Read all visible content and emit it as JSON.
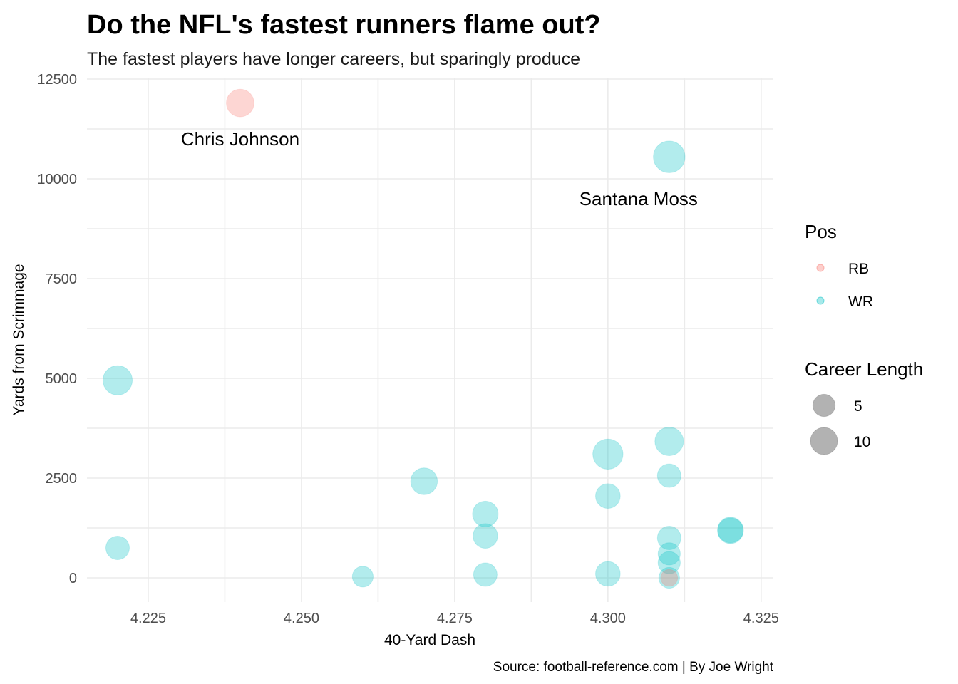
{
  "chart_data": {
    "type": "scatter",
    "title": "Do the NFL's fastest runners flame out?",
    "subtitle": "The fastest players have longer careers, but sparingly produce",
    "caption": "Source: football-reference.com | By Joe Wright",
    "xlabel": "40-Yard Dash",
    "ylabel": "Yards from Scrimmage",
    "xlim": [
      4.215,
      4.327
    ],
    "ylim": [
      -600,
      12500
    ],
    "x_ticks": [
      4.225,
      4.25,
      4.275,
      4.3,
      4.325
    ],
    "x_tick_labels": [
      "4.225",
      "4.250",
      "4.275",
      "4.300",
      "4.325"
    ],
    "y_ticks": [
      0,
      2500,
      5000,
      7500,
      10000,
      12500
    ],
    "y_tick_labels": [
      "0",
      "2500",
      "5000",
      "7500",
      "10000",
      "12500"
    ],
    "grid": true,
    "colors": {
      "RB": "#F8766D",
      "WR": "#00BFC4"
    },
    "point_alpha": 0.3,
    "legend": {
      "position": "right",
      "color_title": "Pos",
      "color_items": [
        "RB",
        "WR"
      ],
      "size_title": "Career Length",
      "size_items": [
        5,
        10
      ]
    },
    "annotations": [
      {
        "text": "Chris Johnson",
        "x": 4.24,
        "y": 11000
      },
      {
        "text": "Santana Moss",
        "x": 4.305,
        "y": 9500
      }
    ],
    "points": [
      {
        "x": 4.24,
        "y": 11900,
        "pos": "RB",
        "career": 9
      },
      {
        "x": 4.31,
        "y": 10550,
        "pos": "WR",
        "career": 14
      },
      {
        "x": 4.22,
        "y": 4950,
        "pos": "WR",
        "career": 11
      },
      {
        "x": 4.22,
        "y": 750,
        "pos": "WR",
        "career": 5
      },
      {
        "x": 4.26,
        "y": 30,
        "pos": "WR",
        "career": 3
      },
      {
        "x": 4.27,
        "y": 2420,
        "pos": "WR",
        "career": 8
      },
      {
        "x": 4.28,
        "y": 1600,
        "pos": "WR",
        "career": 7
      },
      {
        "x": 4.28,
        "y": 1050,
        "pos": "WR",
        "career": 6
      },
      {
        "x": 4.28,
        "y": 80,
        "pos": "WR",
        "career": 5
      },
      {
        "x": 4.3,
        "y": 3100,
        "pos": "WR",
        "career": 12
      },
      {
        "x": 4.3,
        "y": 2050,
        "pos": "WR",
        "career": 6
      },
      {
        "x": 4.3,
        "y": 100,
        "pos": "WR",
        "career": 6
      },
      {
        "x": 4.31,
        "y": 3420,
        "pos": "WR",
        "career": 10
      },
      {
        "x": 4.31,
        "y": 2560,
        "pos": "WR",
        "career": 5
      },
      {
        "x": 4.31,
        "y": 1000,
        "pos": "WR",
        "career": 5
      },
      {
        "x": 4.31,
        "y": 600,
        "pos": "WR",
        "career": 4
      },
      {
        "x": 4.31,
        "y": 380,
        "pos": "WR",
        "career": 4
      },
      {
        "x": 4.31,
        "y": 0,
        "pos": "WR",
        "career": 3
      },
      {
        "x": 4.31,
        "y": 0,
        "pos": "RB",
        "career": 1
      },
      {
        "x": 4.32,
        "y": 1200,
        "pos": "WR",
        "career": 7
      },
      {
        "x": 4.32,
        "y": 1180,
        "pos": "WR",
        "career": 7
      }
    ]
  }
}
